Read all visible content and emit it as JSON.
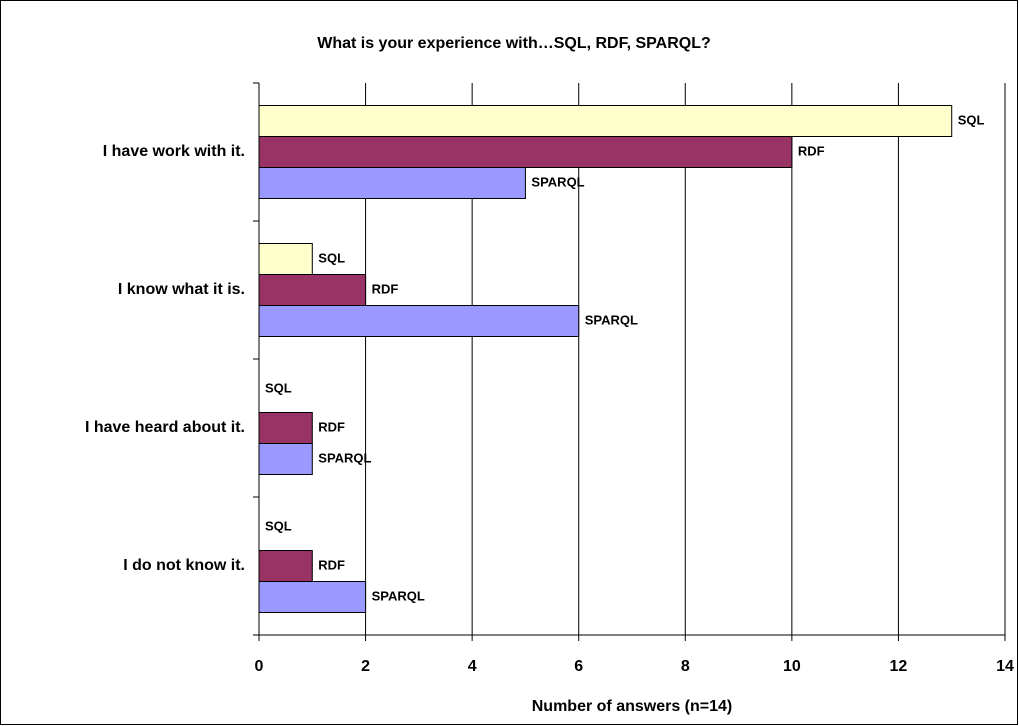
{
  "chart_data": {
    "type": "bar",
    "orientation": "horizontal",
    "title": "What is your experience with…SQL, RDF, SPARQL?",
    "x_label": "Number of answers (n=14)",
    "categories": [
      "I have work with it.",
      "I know what it is.",
      "I have heard about it.",
      "I do not know it."
    ],
    "series": [
      {
        "name": "SQL",
        "color": "#ffffcc",
        "values": [
          13,
          1,
          0,
          0
        ]
      },
      {
        "name": "RDF",
        "color": "#993366",
        "values": [
          10,
          2,
          1,
          1
        ]
      },
      {
        "name": "SPARQL",
        "color": "#9999ff",
        "values": [
          5,
          6,
          1,
          2
        ]
      }
    ],
    "xlim": [
      0,
      14
    ],
    "xticks": [
      0,
      2,
      4,
      6,
      8,
      10,
      12,
      14
    ],
    "grid": true
  }
}
